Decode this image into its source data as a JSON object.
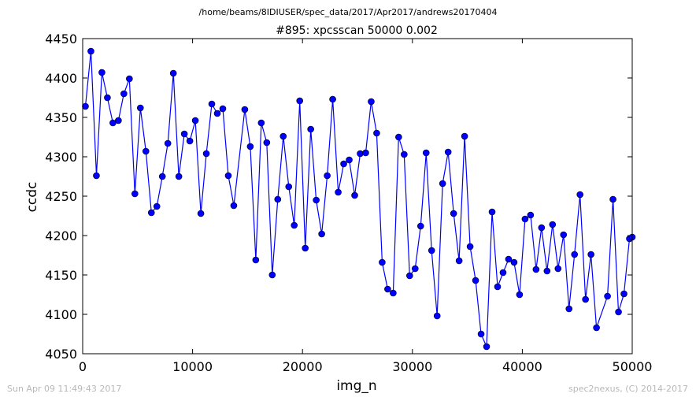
{
  "suptitle": "/home/beams/8IDIUSER/spec_data/2017/Apr2017/andrews20170404",
  "footer_left": "Sun Apr 09 11:49:43 2017",
  "footer_right": "spec2nexus, (C) 2014-2017",
  "chart_data": {
    "type": "line",
    "title": "#895: xpcsscan 50000 0.002",
    "xlabel": "img_n",
    "ylabel": "ccdc",
    "xlim": [
      0,
      50000
    ],
    "ylim": [
      4050,
      4450
    ],
    "xticks": [
      "0",
      "10000",
      "20000",
      "30000",
      "40000",
      "50000"
    ],
    "yticks": [
      "4050",
      "4100",
      "4150",
      "4200",
      "4250",
      "4300",
      "4350",
      "4400",
      "4450"
    ],
    "grid": false,
    "line_color": "#0000ff",
    "marker": "circle",
    "x": [
      250,
      750,
      1250,
      1750,
      2250,
      2750,
      3250,
      3750,
      4250,
      4750,
      5250,
      5750,
      6250,
      6750,
      7250,
      7750,
      8250,
      8750,
      9250,
      9750,
      10250,
      10750,
      11250,
      11750,
      12250,
      12750,
      13250,
      13750,
      14750,
      15250,
      15750,
      16250,
      16750,
      17250,
      17750,
      18250,
      18750,
      19250,
      19750,
      20250,
      20750,
      21250,
      21750,
      22250,
      22750,
      23250,
      23750,
      24250,
      24750,
      25250,
      25750,
      26250,
      26750,
      27250,
      27750,
      28250,
      28750,
      29250,
      29750,
      30250,
      30750,
      31250,
      31750,
      32250,
      32750,
      33250,
      33750,
      34250,
      34750,
      35250,
      35750,
      36250,
      36750,
      37250,
      37750,
      38250,
      38750,
      39250,
      39750,
      40250,
      40750,
      41250,
      41750,
      42250,
      42750,
      43250,
      43750,
      44250,
      44750,
      45250,
      45750,
      46250,
      46750,
      47750,
      48250,
      48750,
      49250,
      49750,
      50000
    ],
    "y": [
      4364,
      4434,
      4276,
      4407,
      4375,
      4343,
      4346,
      4380,
      4399,
      4253,
      4362,
      4307,
      4229,
      4237,
      4275,
      4317,
      4406,
      4275,
      4329,
      4320,
      4346,
      4228,
      4304,
      4367,
      4355,
      4361,
      4276,
      4238,
      4360,
      4313,
      4169,
      4343,
      4318,
      4150,
      4246,
      4326,
      4262,
      4213,
      4371,
      4184,
      4335,
      4245,
      4202,
      4276,
      4373,
      4255,
      4291,
      4296,
      4251,
      4304,
      4305,
      4370,
      4330,
      4166,
      4132,
      4127,
      4325,
      4303,
      4149,
      4158,
      4212,
      4305,
      4181,
      4098,
      4266,
      4306,
      4228,
      4168,
      4326,
      4186,
      4143,
      4075,
      4059,
      4230,
      4135,
      4153,
      4170,
      4166,
      4125,
      4221,
      4226,
      4157,
      4210,
      4155,
      4214,
      4158,
      4201,
      4107,
      4176,
      4252,
      4119,
      4176,
      4083,
      4123,
      4246,
      4103,
      4126,
      4196,
      4198
    ]
  }
}
